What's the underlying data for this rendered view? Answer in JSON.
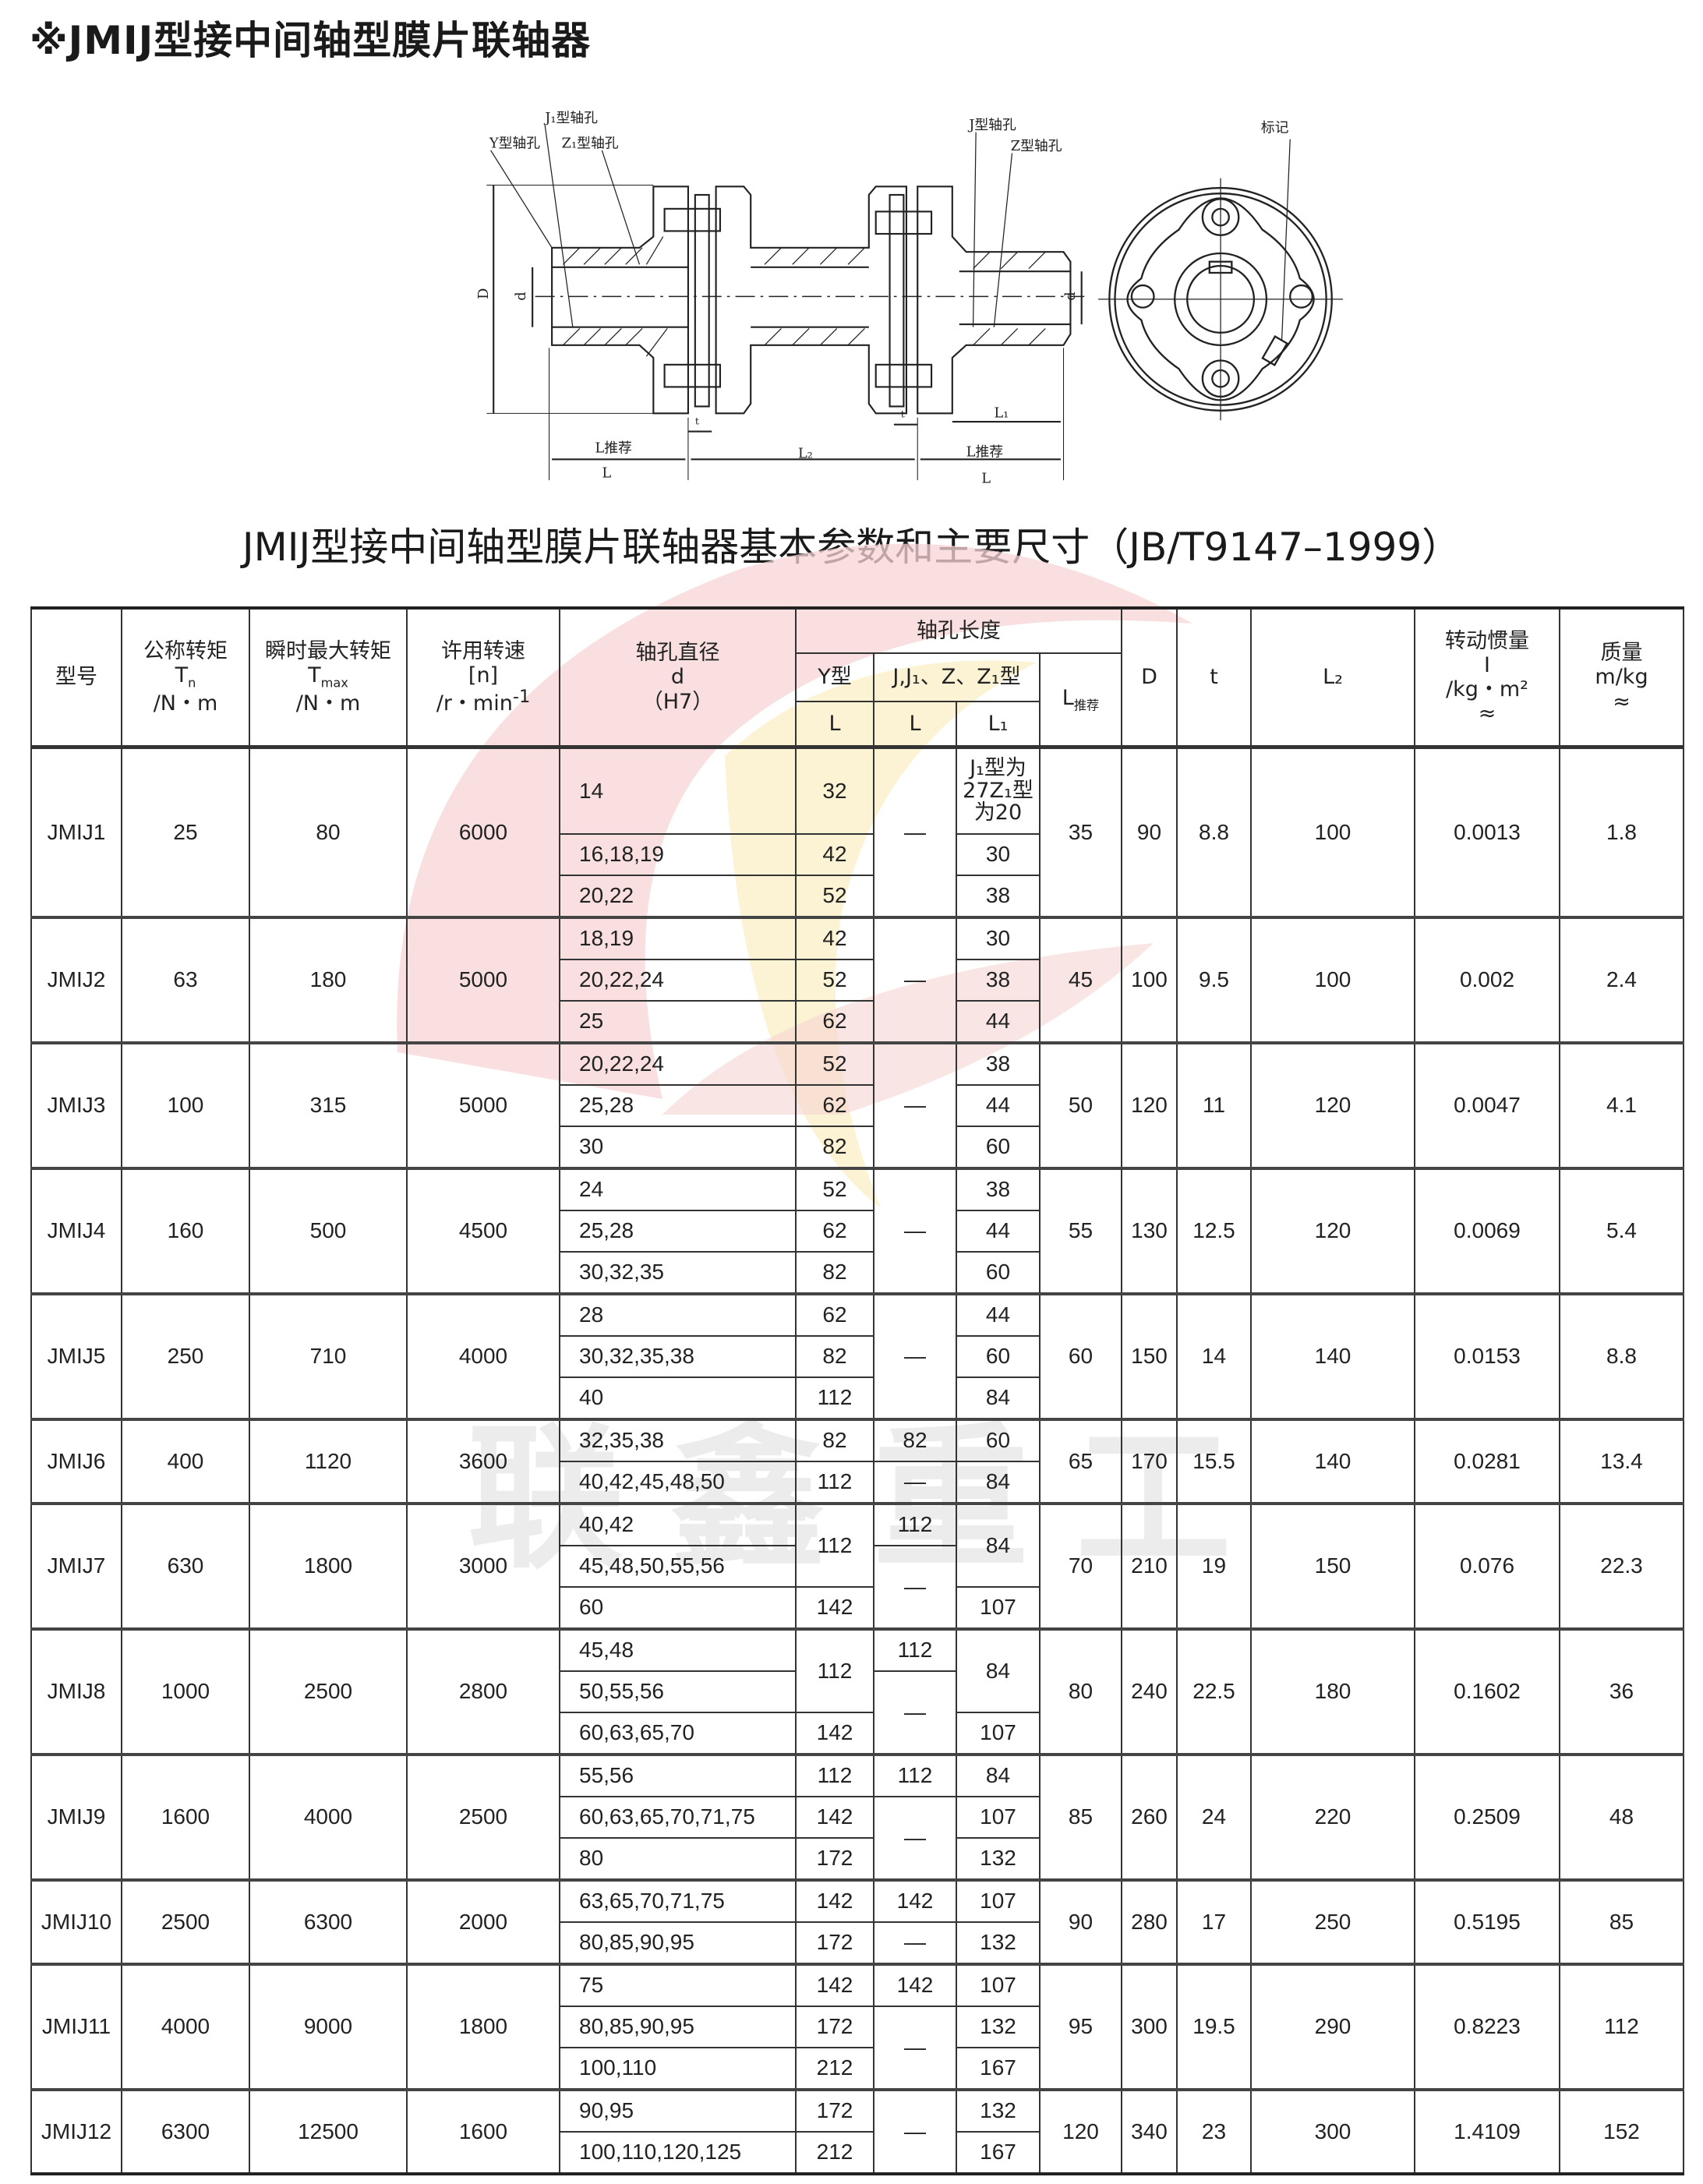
{
  "page_title": "※JMIJ型接中间轴型膜片联轴器",
  "diagram": {
    "labels": {
      "j1_bore": "J₁型轴孔",
      "y_bore": "Y型轴孔",
      "z1_bore": "Z₁型轴孔",
      "j_bore": "J型轴孔",
      "z_bore": "Z型轴孔",
      "mark": "标记",
      "D": "D",
      "d_left": "d",
      "d_right": "d",
      "t_left": "t",
      "t_right": "t",
      "L1": "L₁",
      "L_rec_left": "L推荐",
      "L2": "L₂",
      "L_rec_right": "L推荐",
      "L_left": "L",
      "L_right": "L"
    }
  },
  "table_title": "JMIJ型接中间轴型膜片联轴器基本参数和主要尺寸（JB/T9147–1999）",
  "watermark": "联鑫重工",
  "header": {
    "model": "型号",
    "tn": {
      "name": "公称转矩",
      "sym": "T",
      "sub": "n",
      "unit": "/N・m"
    },
    "tmax": {
      "name": "瞬时最大转矩",
      "sym": "T",
      "sub": "max",
      "unit": "/N・m"
    },
    "speed": {
      "name": "许用转速",
      "sym": "[n]",
      "unit": "/r・min",
      "sup": "-1"
    },
    "bore_dia": {
      "name": "轴孔直径",
      "sym": "d",
      "unit": "（H7）"
    },
    "bore_len": "轴孔长度",
    "y_type": "Y型",
    "jz_type": "J,J₁、Z、Z₁型",
    "L": "L",
    "L1": "L₁",
    "L_rec": {
      "sym": "L",
      "sub": "推荐"
    },
    "D": "D",
    "t": "t",
    "L2": "L₂",
    "inertia": {
      "name": "转动惯量",
      "sym": "I",
      "unit": "/kg・m²",
      "approx": "≈"
    },
    "mass": {
      "name": "质量",
      "unit": "m/kg",
      "approx": "≈"
    }
  },
  "rows": [
    [
      [
        [
          "JMIJ1",
          3
        ],
        [
          "25",
          3
        ],
        [
          "80",
          3
        ],
        [
          "6000",
          3
        ],
        "14",
        "32",
        [
          "—",
          3
        ],
        "J₁型为\n27Z₁型\n为20",
        [
          "35",
          3
        ],
        [
          "90",
          3
        ],
        [
          "8.8",
          3
        ],
        [
          "100",
          3
        ],
        [
          "0.0013",
          3
        ],
        [
          "1.8",
          3
        ]
      ],
      [
        "16,18,19",
        "42",
        "30"
      ],
      [
        "20,22",
        "52",
        "38"
      ]
    ],
    [
      [
        [
          "JMIJ2",
          3
        ],
        [
          "63",
          3
        ],
        [
          "180",
          3
        ],
        [
          "5000",
          3
        ],
        "18,19",
        "42",
        [
          "—",
          3
        ],
        "30",
        [
          "45",
          3
        ],
        [
          "100",
          3
        ],
        [
          "9.5",
          3
        ],
        [
          "100",
          3
        ],
        [
          "0.002",
          3
        ],
        [
          "2.4",
          3
        ]
      ],
      [
        "20,22,24",
        "52",
        "38"
      ],
      [
        "25",
        "62",
        "44"
      ]
    ],
    [
      [
        [
          "JMIJ3",
          3
        ],
        [
          "100",
          3
        ],
        [
          "315",
          3
        ],
        [
          "5000",
          3
        ],
        "20,22,24",
        "52",
        [
          "—",
          3
        ],
        "38",
        [
          "50",
          3
        ],
        [
          "120",
          3
        ],
        [
          "11",
          3
        ],
        [
          "120",
          3
        ],
        [
          "0.0047",
          3
        ],
        [
          "4.1",
          3
        ]
      ],
      [
        "25,28",
        "62",
        "44"
      ],
      [
        "30",
        "82",
        "60"
      ]
    ],
    [
      [
        [
          "JMIJ4",
          3
        ],
        [
          "160",
          3
        ],
        [
          "500",
          3
        ],
        [
          "4500",
          3
        ],
        "24",
        "52",
        [
          "—",
          3
        ],
        "38",
        [
          "55",
          3
        ],
        [
          "130",
          3
        ],
        [
          "12.5",
          3
        ],
        [
          "120",
          3
        ],
        [
          "0.0069",
          3
        ],
        [
          "5.4",
          3
        ]
      ],
      [
        "25,28",
        "62",
        "44"
      ],
      [
        "30,32,35",
        "82",
        "60"
      ]
    ],
    [
      [
        [
          "JMIJ5",
          3
        ],
        [
          "250",
          3
        ],
        [
          "710",
          3
        ],
        [
          "4000",
          3
        ],
        "28",
        "62",
        [
          "—",
          3
        ],
        "44",
        [
          "60",
          3
        ],
        [
          "150",
          3
        ],
        [
          "14",
          3
        ],
        [
          "140",
          3
        ],
        [
          "0.0153",
          3
        ],
        [
          "8.8",
          3
        ]
      ],
      [
        "30,32,35,38",
        "82",
        "60"
      ],
      [
        "40",
        "112",
        "84"
      ]
    ],
    [
      [
        [
          "JMIJ6",
          2
        ],
        [
          "400",
          2
        ],
        [
          "1120",
          2
        ],
        [
          "3600",
          2
        ],
        "32,35,38",
        "82",
        "82",
        "60",
        [
          "65",
          2
        ],
        [
          "170",
          2
        ],
        [
          "15.5",
          2
        ],
        [
          "140",
          2
        ],
        [
          "0.0281",
          2
        ],
        [
          "13.4",
          2
        ]
      ],
      [
        "40,42,45,48,50",
        "112",
        "—",
        "84"
      ]
    ],
    [
      [
        [
          "JMIJ7",
          3
        ],
        [
          "630",
          3
        ],
        [
          "1800",
          3
        ],
        [
          "3000",
          3
        ],
        "40,42",
        [
          "112",
          2
        ],
        "112",
        [
          "84",
          2
        ],
        [
          "70",
          3
        ],
        [
          "210",
          3
        ],
        [
          "19",
          3
        ],
        [
          "150",
          3
        ],
        [
          "0.076",
          3
        ],
        [
          "22.3",
          3
        ]
      ],
      [
        "45,48,50,55,56",
        [
          "—",
          2
        ]
      ],
      [
        "60",
        "142",
        "107"
      ]
    ],
    [
      [
        [
          "JMIJ8",
          3
        ],
        [
          "1000",
          3
        ],
        [
          "2500",
          3
        ],
        [
          "2800",
          3
        ],
        "45,48",
        [
          "112",
          2
        ],
        "112",
        [
          "84",
          2
        ],
        [
          "80",
          3
        ],
        [
          "240",
          3
        ],
        [
          "22.5",
          3
        ],
        [
          "180",
          3
        ],
        [
          "0.1602",
          3
        ],
        [
          "36",
          3
        ]
      ],
      [
        "50,55,56",
        [
          "—",
          2
        ]
      ],
      [
        "60,63,65,70",
        "142",
        "107"
      ]
    ],
    [
      [
        [
          "JMIJ9",
          3
        ],
        [
          "1600",
          3
        ],
        [
          "4000",
          3
        ],
        [
          "2500",
          3
        ],
        "55,56",
        "112",
        "112",
        "84",
        [
          "85",
          3
        ],
        [
          "260",
          3
        ],
        [
          "24",
          3
        ],
        [
          "220",
          3
        ],
        [
          "0.2509",
          3
        ],
        [
          "48",
          3
        ]
      ],
      [
        "60,63,65,70,71,75",
        "142",
        [
          "—",
          2
        ],
        "107"
      ],
      [
        "80",
        "172",
        "132"
      ]
    ],
    [
      [
        [
          "JMIJ10",
          2
        ],
        [
          "2500",
          2
        ],
        [
          "6300",
          2
        ],
        [
          "2000",
          2
        ],
        "63,65,70,71,75",
        "142",
        "142",
        "107",
        [
          "90",
          2
        ],
        [
          "280",
          2
        ],
        [
          "17",
          2
        ],
        [
          "250",
          2
        ],
        [
          "0.5195",
          2
        ],
        [
          "85",
          2
        ]
      ],
      [
        "80,85,90,95",
        "172",
        "—",
        "132"
      ]
    ],
    [
      [
        [
          "JMIJ11",
          3
        ],
        [
          "4000",
          3
        ],
        [
          "9000",
          3
        ],
        [
          "1800",
          3
        ],
        "75",
        "142",
        "142",
        "107",
        [
          "95",
          3
        ],
        [
          "300",
          3
        ],
        [
          "19.5",
          3
        ],
        [
          "290",
          3
        ],
        [
          "0.8223",
          3
        ],
        [
          "112",
          3
        ]
      ],
      [
        "80,85,90,95",
        "172",
        [
          "—",
          2
        ],
        "132"
      ],
      [
        "100,110",
        "212",
        "167"
      ]
    ],
    [
      [
        [
          "JMIJ12",
          2
        ],
        [
          "6300",
          2
        ],
        [
          "12500",
          2
        ],
        [
          "1600",
          2
        ],
        "90,95",
        "172",
        [
          "—",
          2
        ],
        "132",
        [
          "120",
          2
        ],
        [
          "340",
          2
        ],
        [
          "23",
          2
        ],
        [
          "300",
          2
        ],
        [
          "1.4109",
          2
        ],
        [
          "152",
          2
        ]
      ],
      [
        "100,110,120,125",
        "212",
        "167"
      ]
    ]
  ]
}
